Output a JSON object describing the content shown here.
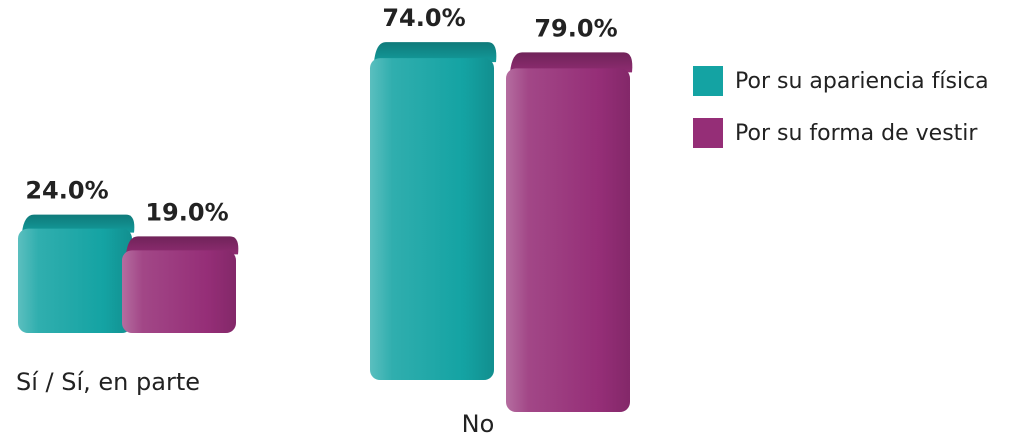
{
  "chart_data": {
    "type": "bar",
    "categories": [
      "Sí / Sí, en parte",
      "No"
    ],
    "series": [
      {
        "name": "Por su apariencia física",
        "values": [
          24.0,
          74.0
        ],
        "labels": [
          "24.0%",
          "74.0%"
        ],
        "color": "#14a3a3"
      },
      {
        "name": "Por su forma de vestir",
        "values": [
          19.0,
          79.0
        ],
        "labels": [
          "19.0%",
          "79.0%"
        ],
        "color": "#952e77"
      }
    ],
    "ylim": [
      0,
      100
    ],
    "value_unit": "%",
    "legend_position": "top-right",
    "style": "3d-rounded",
    "grid": false
  }
}
